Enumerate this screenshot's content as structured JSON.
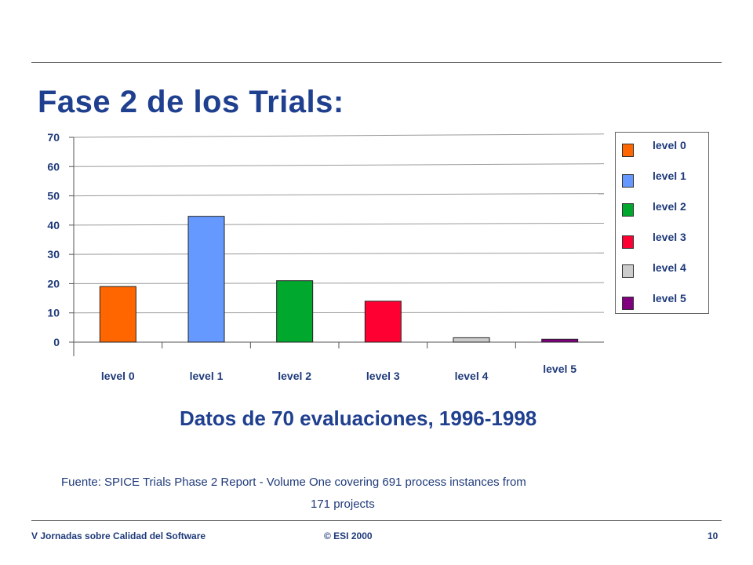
{
  "slide": {
    "title": "Fase 2 de los Trials:",
    "subtitle": "Datos de 70 evaluaciones, 1996-1998",
    "source_line1": "Fuente: SPICE Trials Phase 2 Report - Volume One covering 691 process instances from",
    "source_line2": "171 projects"
  },
  "footer": {
    "left": "V Jornadas sobre Calidad del Software",
    "center": "© ESI 2000",
    "page": "10"
  },
  "chart_data": {
    "type": "bar",
    "categories": [
      "level 0",
      "level 1",
      "level 2",
      "level 3",
      "level 4",
      "level 5"
    ],
    "values": [
      19,
      43,
      21,
      14,
      1.5,
      1
    ],
    "colors": [
      "#ff6600",
      "#6699ff",
      "#00a82d",
      "#ff0033",
      "#cccccc",
      "#800080"
    ],
    "ylim": [
      0,
      70
    ],
    "yticks": [
      0,
      10,
      20,
      30,
      40,
      50,
      60,
      70
    ],
    "grid": true,
    "legend_position": "right",
    "legend": [
      "level 0",
      "level 1",
      "level 2",
      "level 3",
      "level 4",
      "level 5"
    ]
  }
}
